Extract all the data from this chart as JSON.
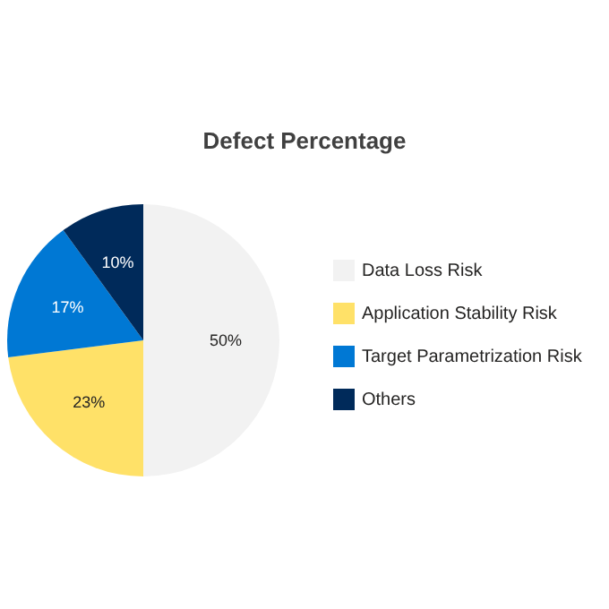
{
  "chart_data": {
    "type": "pie",
    "title": "Defect Percentage",
    "categories": [
      "Data Loss Risk",
      "Application Stability Risk",
      "Target Parametrization Risk",
      "Others"
    ],
    "values": [
      50,
      23,
      17,
      10
    ],
    "colors": [
      "#f2f2f2",
      "#ffe168",
      "#0078d4",
      "#002a5a"
    ],
    "value_labels": [
      "50%",
      "23%",
      "17%",
      "10%"
    ],
    "legend": "right"
  }
}
